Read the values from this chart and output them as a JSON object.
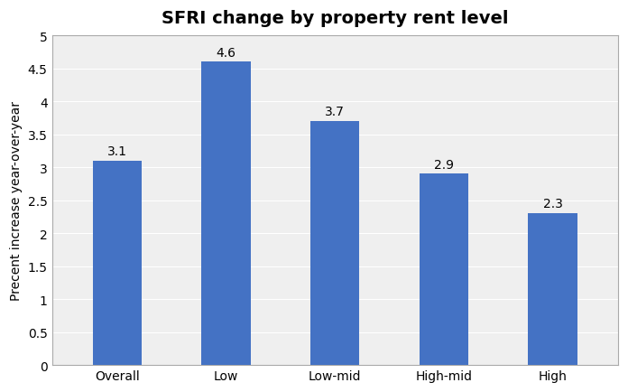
{
  "title": "SFRI change by property rent level",
  "categories": [
    "Overall",
    "Low",
    "Low-mid",
    "High-mid",
    "High"
  ],
  "values": [
    3.1,
    4.6,
    3.7,
    2.9,
    2.3
  ],
  "bar_color": "#4472C4",
  "ylabel": "Precent increase year-over-year",
  "ylim": [
    0,
    5
  ],
  "yticks": [
    0,
    0.5,
    1.0,
    1.5,
    2.0,
    2.5,
    3.0,
    3.5,
    4.0,
    4.5,
    5.0
  ],
  "title_fontsize": 14,
  "label_fontsize": 10,
  "tick_fontsize": 10,
  "value_fontsize": 10,
  "background_color": "#ffffff",
  "plot_bg_color": "#efefef",
  "grid_color": "#ffffff",
  "title_fontweight": "bold",
  "bar_width": 0.45,
  "spine_color": "#aaaaaa"
}
